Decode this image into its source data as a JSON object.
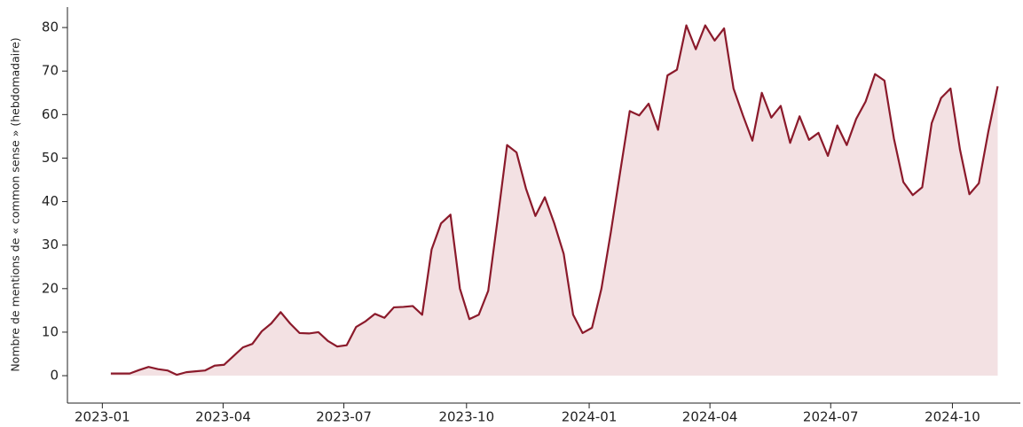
{
  "chart_data": {
    "type": "area",
    "ylabel": "Nombre de mentions de « common sense » (hebdomadaire)",
    "categories": [
      null,
      null,
      null,
      null,
      null,
      null,
      null,
      null,
      null,
      null,
      null,
      null,
      null,
      null,
      null,
      null,
      null,
      null,
      null,
      null,
      null,
      null,
      null,
      null,
      null,
      null,
      null,
      null,
      null,
      null,
      null,
      null,
      null,
      null,
      null,
      null,
      null,
      null,
      null,
      null,
      null,
      null,
      null,
      null,
      null,
      null,
      null,
      null,
      null,
      null,
      null,
      null,
      null,
      null,
      null,
      null,
      null,
      null,
      null,
      null,
      null,
      null,
      null,
      null,
      null,
      null,
      null,
      null,
      null,
      null,
      null,
      null,
      null,
      null,
      null,
      null,
      null,
      null,
      null,
      null,
      null,
      null,
      null,
      null,
      null,
      null,
      null,
      null,
      null,
      null,
      null,
      null,
      null,
      null,
      null
    ],
    "series": [
      {
        "name": "mentions",
        "color": "#8b1a2b",
        "fill": "#f3e1e3",
        "values": [
          0.5,
          0.5,
          0.5,
          1.3,
          2,
          1.5,
          1.2,
          0.2,
          0.8,
          1,
          1.2,
          2.3,
          2.5,
          4.5,
          6.5,
          7.3,
          10.2,
          12,
          14.6,
          12,
          9.8,
          9.7,
          10,
          8,
          6.7,
          7,
          11.2,
          12.5,
          14.2,
          13.3,
          15.7,
          15.8,
          16,
          14,
          29,
          35,
          37,
          20,
          13,
          14,
          19.5,
          36,
          53,
          51.3,
          43,
          36.7,
          41,
          35,
          28,
          14,
          9.8,
          11,
          20,
          33,
          47,
          60.8,
          59.8,
          62.5,
          56.5,
          69,
          70.3,
          80.5,
          75,
          80.5,
          77,
          79.8,
          66,
          59.8,
          54,
          65,
          59.3,
          62,
          53.5,
          59.6,
          54.2,
          55.8,
          50.5,
          57.5,
          53,
          59,
          63,
          69.3,
          67.8,
          54.5,
          44.5,
          41.5,
          43.3,
          58,
          63.8,
          66,
          52,
          41.7,
          44.2,
          56,
          66.5
        ]
      }
    ],
    "xlim": [
      -4.6,
      96.4
    ],
    "xticks": [
      {
        "value": -0.9,
        "label": "2023-01"
      },
      {
        "value": 11.9,
        "label": "2023-04"
      },
      {
        "value": 24.7,
        "label": "2023-07"
      },
      {
        "value": 37.7,
        "label": "2023-10"
      },
      {
        "value": 50.7,
        "label": "2024-01"
      },
      {
        "value": 63.5,
        "label": "2024-04"
      },
      {
        "value": 76.3,
        "label": "2024-07"
      },
      {
        "value": 89.2,
        "label": "2024-10"
      }
    ],
    "ylim": [
      -6.3,
      84.7
    ],
    "yticks": [
      0,
      10,
      20,
      30,
      40,
      50,
      60,
      70,
      80
    ]
  }
}
